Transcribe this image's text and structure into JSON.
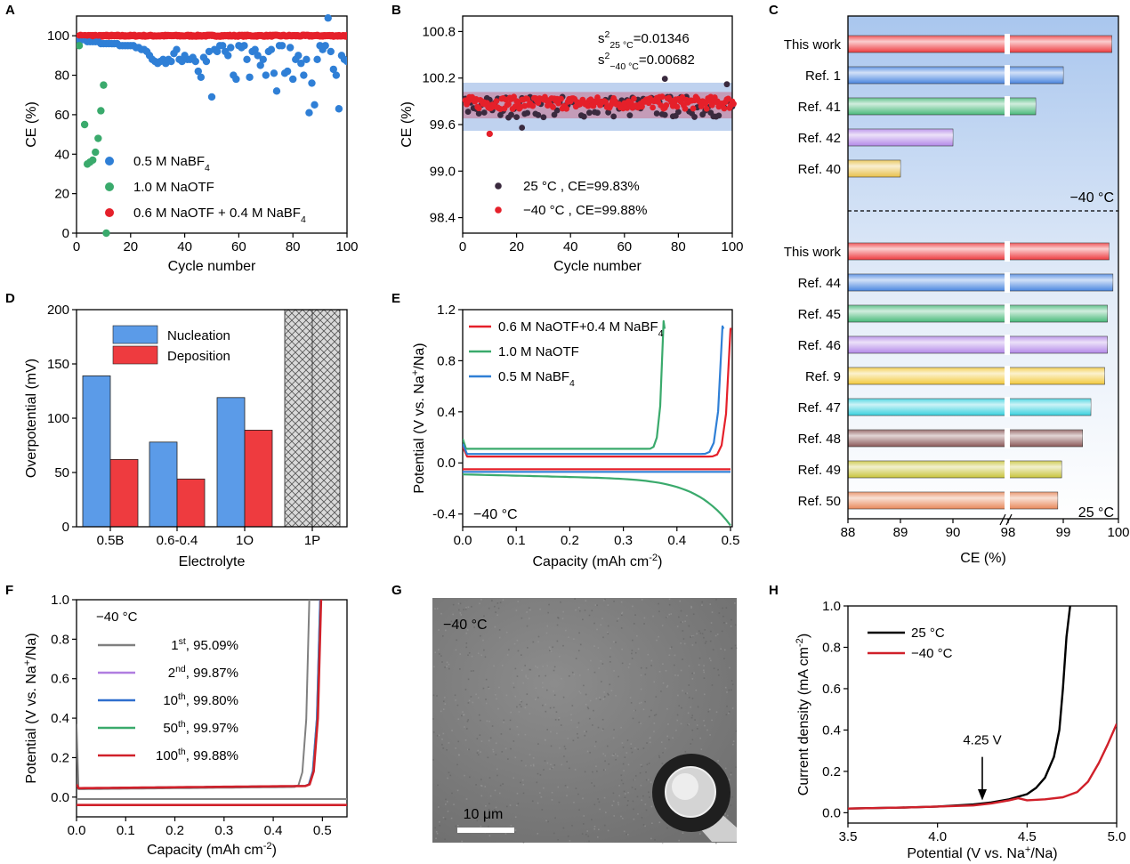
{
  "panels": {
    "A": {
      "label": "A",
      "xlabel": "Cycle number",
      "ylabel": "CE (%)",
      "xlim": [
        0,
        100
      ],
      "ylim": [
        0,
        110
      ],
      "xticks": [
        "0",
        "20",
        "40",
        "60",
        "80",
        "100"
      ],
      "yticks": [
        "0",
        "20",
        "40",
        "60",
        "80",
        "100"
      ],
      "legend": [
        {
          "text": "0.5 M NaBF",
          "sub": "4",
          "color": "#2f7fd6"
        },
        {
          "text": "1.0 M NaOTF",
          "sub": "",
          "color": "#3aaa6c"
        },
        {
          "text": "0.6 M NaOTF + 0.4 M NaBF",
          "sub": "4",
          "color": "#e5202a"
        }
      ]
    },
    "B": {
      "label": "B",
      "xlabel": "Cycle number",
      "ylabel": "CE (%)",
      "xlim": [
        0,
        100
      ],
      "ylim": [
        98.2,
        101.0
      ],
      "xticks": [
        "0",
        "20",
        "40",
        "60",
        "80",
        "100"
      ],
      "yticks": [
        "98.4",
        "99.0",
        "99.6",
        "100.2",
        "100.8"
      ],
      "var1": {
        "pre": "s",
        "sup": "2",
        "sub": "25 °C",
        "val": "=0.01346"
      },
      "var2": {
        "pre": "s",
        "sup": "2",
        "sub": "−40 °C",
        "val": "=0.00682"
      },
      "legend": [
        {
          "text": "25 °C , CE=99.83%",
          "color": "#3a2a3e"
        },
        {
          "text": "−40 °C , CE=99.88%",
          "color": "#e5202a"
        }
      ]
    },
    "C": {
      "label": "C",
      "xlabel": "CE (%)",
      "xticks": [
        "88",
        "89",
        "90",
        "98",
        "99",
        "100"
      ],
      "cold_label": "−40 °C",
      "warm_label": "25 °C"
    },
    "D": {
      "label": "D",
      "xlabel": "Electrolyte",
      "ylabel": "Overpotential (mV)",
      "ylim": [
        0,
        200
      ],
      "yticks": [
        "0",
        "50",
        "100",
        "150",
        "200"
      ],
      "legend": [
        {
          "text": "Nucleation",
          "color": "#5b9be8"
        },
        {
          "text": "Deposition",
          "color": "#ee3b3f"
        }
      ]
    },
    "E": {
      "label": "E",
      "xlabel": "Capacity (mAh cm",
      "xlabel_sup": "-2",
      "xlabel_end": ")",
      "ylabel": "Potential (V vs. Na",
      "ylabel_sup": "+",
      "ylabel_end": "/Na)",
      "xlim": [
        0,
        0.5
      ],
      "ylim": [
        -0.5,
        1.2
      ],
      "xticks": [
        "0.0",
        "0.1",
        "0.2",
        "0.3",
        "0.4",
        "0.5"
      ],
      "yticks": [
        "-0.4",
        "0.0",
        "0.4",
        "0.8",
        "1.2"
      ],
      "temp": "−40 °C",
      "legend": [
        {
          "text": "0.6 M NaOTF+0.4 M NaBF",
          "sub": "4",
          "color": "#e5202a"
        },
        {
          "text": "1.0 M NaOTF",
          "sub": "",
          "color": "#3aaa6c"
        },
        {
          "text": "0.5 M NaBF",
          "sub": "4",
          "color": "#2f7fd6"
        }
      ]
    },
    "F": {
      "label": "F",
      "xlabel": "Capacity (mAh cm",
      "xlabel_sup": "-2",
      "xlabel_end": ")",
      "ylabel": "Potential (V vs. Na",
      "ylabel_sup": "+",
      "ylabel_end": "/Na)",
      "xlim": [
        0,
        0.55
      ],
      "ylim": [
        -0.1,
        1.0
      ],
      "xticks": [
        "0.0",
        "0.1",
        "0.2",
        "0.3",
        "0.4",
        "0.5"
      ],
      "yticks": [
        "0.0",
        "0.2",
        "0.4",
        "0.6",
        "0.8",
        "1.0"
      ],
      "temp": "−40 °C",
      "legend": [
        {
          "n": "1",
          "sup": "st",
          "val": ", 95.09%",
          "color": "#808080"
        },
        {
          "n": "2",
          "sup": "nd",
          "val": ", 99.87%",
          "color": "#b07ee0"
        },
        {
          "n": "10",
          "sup": "th",
          "val": ", 99.80%",
          "color": "#2f6fce"
        },
        {
          "n": "50",
          "sup": "th",
          "val": ", 99.97%",
          "color": "#3aaa6c"
        },
        {
          "n": "100",
          "sup": "th",
          "val": ", 99.88%",
          "color": "#d0202a"
        }
      ]
    },
    "G": {
      "label": "G",
      "temp": "−40 °C",
      "scale": "10 μm"
    },
    "H": {
      "label": "H",
      "xlabel": "Potential (V vs. Na",
      "xlabel_sup": "+",
      "xlabel_end": "/Na)",
      "ylabel": "Current density (mA cm",
      "ylabel_sup": "-2",
      "ylabel_end": ")",
      "xlim": [
        3.5,
        5.0
      ],
      "ylim": [
        -0.05,
        1.0
      ],
      "xticks": [
        "3.5",
        "4.0",
        "4.5",
        "5.0"
      ],
      "yticks": [
        "0.0",
        "0.2",
        "0.4",
        "0.6",
        "0.8",
        "1.0"
      ],
      "annotation": "4.25 V",
      "legend": [
        {
          "text": "25 °C",
          "color": "#000000"
        },
        {
          "text": "−40 °C",
          "color": "#d0202a"
        }
      ]
    }
  },
  "chart_data": [
    {
      "panel": "A",
      "type": "scatter",
      "series": [
        {
          "name": "0.5 M NaBF4",
          "color": "#2f7fd6",
          "x": [
            1,
            2,
            3,
            4,
            5,
            6,
            7,
            8,
            9,
            10,
            11,
            12,
            13,
            14,
            15,
            16,
            17,
            18,
            19,
            20,
            21,
            22,
            23,
            24,
            25,
            26,
            27,
            28,
            29,
            30,
            31,
            32,
            33,
            34,
            35,
            36,
            37,
            38,
            39,
            40,
            41,
            42,
            43,
            44,
            45,
            46,
            47,
            48,
            49,
            50,
            51,
            52,
            53,
            54,
            55,
            56,
            57,
            58,
            59,
            60,
            61,
            62,
            63,
            64,
            65,
            66,
            67,
            68,
            69,
            70,
            71,
            72,
            73,
            74,
            75,
            76,
            77,
            78,
            79,
            80,
            81,
            82,
            83,
            84,
            85,
            86,
            87,
            88,
            89,
            90,
            91,
            92,
            93,
            94,
            95,
            96,
            97,
            98,
            99,
            100
          ],
          "y": [
            98,
            98,
            98,
            97,
            97,
            97,
            97,
            97,
            96,
            96,
            96,
            96,
            96,
            96,
            96,
            95,
            95,
            95,
            95,
            95,
            95,
            94,
            94,
            93,
            93,
            92,
            90,
            88,
            87,
            86,
            87,
            88,
            86,
            88,
            87,
            91,
            93,
            88,
            87,
            90,
            88,
            88,
            89,
            87,
            82,
            79,
            89,
            87,
            92,
            69,
            93,
            92,
            95,
            95,
            92,
            90,
            94,
            80,
            78,
            95,
            94,
            95,
            88,
            79,
            92,
            93,
            90,
            85,
            88,
            80,
            92,
            93,
            81,
            72,
            95,
            95,
            81,
            82,
            94,
            78,
            88,
            90,
            86,
            80,
            88,
            61,
            76,
            65,
            88,
            95,
            93,
            95,
            109,
            92,
            83,
            80,
            63,
            90,
            88,
            87
          ]
        },
        {
          "name": "1.0 M NaOTF",
          "color": "#3aaa6c",
          "x": [
            1,
            3,
            4,
            5,
            6,
            7,
            8,
            9,
            10,
            11
          ],
          "y": [
            95,
            55,
            35,
            36,
            37,
            41,
            48,
            62,
            75,
            0
          ]
        },
        {
          "name": "0.6 M NaOTF + 0.4 M NaBF4",
          "color": "#e5202a",
          "x_range": [
            1,
            100
          ],
          "y": 100
        }
      ]
    },
    {
      "panel": "B",
      "type": "scatter",
      "bands": [
        {
          "ylim": [
            99.52,
            100.14
          ],
          "color": "#a9c3ea"
        },
        {
          "ylim": [
            99.68,
            100.02
          ],
          "color": "#c68aa6"
        }
      ],
      "series": [
        {
          "name": "25 °C",
          "color": "#3a2a3e",
          "mean": 99.83,
          "outliers": [
            [
              10,
              99.48
            ],
            [
              22,
              99.56
            ],
            [
              75,
              100.19
            ],
            [
              98,
              100.12
            ]
          ]
        },
        {
          "name": "−40 °C",
          "color": "#e5202a",
          "mean": 99.88,
          "outliers": [
            [
              10,
              99.48
            ]
          ]
        }
      ]
    },
    {
      "panel": "C",
      "type": "bar",
      "categories": [
        "This work",
        "Ref. 1",
        "Ref. 41",
        "Ref. 42",
        "Ref. 40",
        "This work",
        "Ref. 44",
        "Ref. 45",
        "Ref. 46",
        "Ref. 9",
        "Ref. 47",
        "Ref. 48",
        "Ref. 49",
        "Ref. 50"
      ],
      "values": [
        99.88,
        99.0,
        98.5,
        90.0,
        89.0,
        99.83,
        99.9,
        99.8,
        99.8,
        99.75,
        99.5,
        99.35,
        98.97,
        98.9
      ],
      "groups": [
        "−40 °C",
        "−40 °C",
        "−40 °C",
        "−40 °C",
        "−40 °C",
        "25 °C",
        "25 °C",
        "25 °C",
        "25 °C",
        "25 °C",
        "25 °C",
        "25 °C",
        "25 °C",
        "25 °C"
      ],
      "colors": [
        "#ee3b3f",
        "#4a86e0",
        "#48b97a",
        "#b388e8",
        "#e8c04a",
        "#ee3b3f",
        "#4a86e0",
        "#48b97a",
        "#b388e8",
        "#f2c93c",
        "#38d0de",
        "#8a5858",
        "#c8c43a",
        "#e8885a"
      ]
    },
    {
      "panel": "D",
      "type": "bar",
      "categories": [
        "0.5B",
        "0.6-0.4",
        "1O",
        "1P"
      ],
      "series": [
        {
          "name": "Nucleation",
          "values": [
            139,
            78,
            119,
            null
          ]
        },
        {
          "name": "Deposition",
          "values": [
            62,
            44,
            89,
            null
          ]
        }
      ]
    },
    {
      "panel": "E",
      "type": "line",
      "x_unit": "mAh cm-2",
      "y_unit": "V",
      "series": [
        {
          "name": "0.6 M NaOTF+0.4 M NaBF4",
          "color": "#e5202a",
          "plateau_up": 0.05,
          "plateau_down": -0.05,
          "capacity": 0.5
        },
        {
          "name": "1.0 M NaOTF",
          "color": "#3aaa6c",
          "plateau_up": 0.11,
          "plateau_down": -0.09,
          "capacity": 0.375,
          "discharge_end": [
            0.49,
            -0.48
          ]
        },
        {
          "name": "0.5 M NaBF4",
          "color": "#2f7fd6",
          "plateau_up": 0.07,
          "plateau_down": -0.07,
          "capacity": 0.485
        }
      ]
    },
    {
      "panel": "F",
      "type": "line",
      "series": [
        {
          "name": "1st, 95.09%",
          "color": "#808080",
          "plateau_up": 0.04,
          "plateau_down": -0.01,
          "capacity": 0.475
        },
        {
          "name": "2nd, 99.87%",
          "color": "#b07ee0",
          "plateau_up": 0.045,
          "plateau_down": -0.04,
          "capacity": 0.497
        },
        {
          "name": "10th, 99.80%",
          "color": "#2f6fce",
          "plateau_up": 0.045,
          "plateau_down": -0.04,
          "capacity": 0.497
        },
        {
          "name": "50th, 99.97%",
          "color": "#3aaa6c",
          "plateau_up": 0.045,
          "plateau_down": -0.04,
          "capacity": 0.498
        },
        {
          "name": "100th, 99.88%",
          "color": "#d0202a",
          "plateau_up": 0.045,
          "plateau_down": -0.04,
          "capacity": 0.499
        }
      ]
    },
    {
      "panel": "H",
      "type": "line",
      "series": [
        {
          "name": "25 °C",
          "color": "#000000",
          "onset": 4.25,
          "x": [
            3.5,
            3.8,
            4.0,
            4.2,
            4.3,
            4.4,
            4.5,
            4.55,
            4.6,
            4.65,
            4.68,
            4.7,
            4.72,
            4.74
          ],
          "y": [
            0.02,
            0.025,
            0.03,
            0.04,
            0.05,
            0.065,
            0.09,
            0.12,
            0.17,
            0.27,
            0.4,
            0.6,
            0.85,
            1.0
          ]
        },
        {
          "name": "−40 °C",
          "color": "#d0202a",
          "x": [
            3.5,
            3.8,
            4.0,
            4.2,
            4.3,
            4.4,
            4.45,
            4.5,
            4.6,
            4.7,
            4.78,
            4.84,
            4.9,
            4.95,
            5.0
          ],
          "y": [
            0.02,
            0.025,
            0.03,
            0.035,
            0.045,
            0.06,
            0.07,
            0.06,
            0.065,
            0.075,
            0.1,
            0.15,
            0.24,
            0.33,
            0.43
          ]
        }
      ]
    }
  ]
}
